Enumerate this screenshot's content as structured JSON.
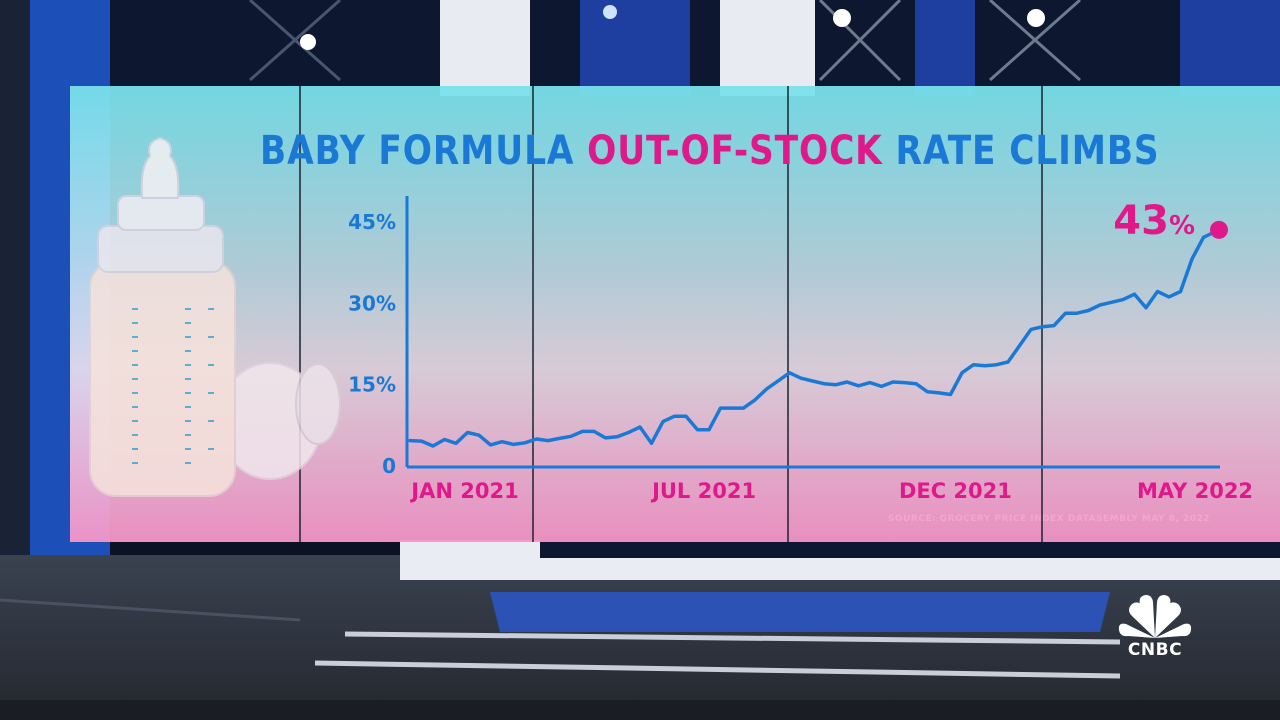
{
  "chart_data": {
    "type": "line",
    "title_parts": [
      "BABY FORMULA ",
      "OUT-OF-STOCK",
      " RATE CLIMBS"
    ],
    "xlabel": "",
    "ylabel": "",
    "x_ticks": [
      "JAN 2021",
      "JUL 2021",
      "DEC 2021",
      "MAY 2022"
    ],
    "y_ticks": [
      "0",
      "15%",
      "30%",
      "45%"
    ],
    "ylim": [
      0,
      45
    ],
    "grid": false,
    "series": [
      {
        "x": [
          "2021-01-03",
          "2021-01-10",
          "2021-01-17",
          "2021-01-24",
          "2021-01-31",
          "2021-02-07",
          "2021-02-14",
          "2021-02-21",
          "2021-02-28",
          "2021-03-07",
          "2021-03-14",
          "2021-03-21",
          "2021-03-28",
          "2021-04-04",
          "2021-04-11",
          "2021-04-18",
          "2021-04-25",
          "2021-05-02",
          "2021-05-09",
          "2021-05-16",
          "2021-05-23",
          "2021-05-30",
          "2021-06-06",
          "2021-06-13",
          "2021-06-20",
          "2021-06-27",
          "2021-07-04",
          "2021-07-11",
          "2021-07-18",
          "2021-07-25",
          "2021-08-01",
          "2021-08-08",
          "2021-08-15",
          "2021-08-22",
          "2021-08-29",
          "2021-09-05",
          "2021-09-12",
          "2021-09-19",
          "2021-09-26",
          "2021-10-03",
          "2021-10-10",
          "2021-10-17",
          "2021-10-24",
          "2021-10-31",
          "2021-11-07",
          "2021-11-14",
          "2021-11-21",
          "2021-11-28",
          "2021-12-05",
          "2021-12-12",
          "2021-12-19",
          "2021-12-26",
          "2022-01-02",
          "2022-01-09",
          "2022-01-16",
          "2022-01-23",
          "2022-01-30",
          "2022-02-06",
          "2022-02-13",
          "2022-02-20",
          "2022-02-27",
          "2022-03-06",
          "2022-03-13",
          "2022-03-20",
          "2022-03-27",
          "2022-04-03",
          "2022-04-10",
          "2022-04-17",
          "2022-04-24",
          "2022-05-01",
          "2022-05-08"
        ],
        "values": [
          4.5,
          4.4,
          3.5,
          4.7,
          4.0,
          6.0,
          5.5,
          3.7,
          4.3,
          3.8,
          4.1,
          4.8,
          4.5,
          4.9,
          5.3,
          6.2,
          6.2,
          5.0,
          5.2,
          6.0,
          7.0,
          4.0,
          8.0,
          9.0,
          9.0,
          6.5,
          6.5,
          10.5,
          10.5,
          10.5,
          12.0,
          14.0,
          15.5,
          17.0,
          16.0,
          15.5,
          15.0,
          14.8,
          15.3,
          14.6,
          15.2,
          14.5,
          15.3,
          15.2,
          15.0,
          13.5,
          13.3,
          13.0,
          17.0,
          18.5,
          18.3,
          18.5,
          19.0,
          22.0,
          25.0,
          25.5,
          25.7,
          28.0,
          28.0,
          28.5,
          29.5,
          30.0,
          30.5,
          31.5,
          29.0,
          32.0,
          31.0,
          32.0,
          38.0,
          42.0,
          43.0
        ]
      }
    ],
    "annotation": {
      "value": "43",
      "unit": "%"
    },
    "source": "SOURCE: GROCERY PRICE INDEX DATASEMBLY MAY 8, 2022",
    "colors": {
      "line": "#1b79d6",
      "accent": "#e0198a",
      "tick_y": "#1b79d6",
      "tick_x": "#e0198a"
    }
  },
  "network": {
    "logo_text": "CNBC"
  }
}
